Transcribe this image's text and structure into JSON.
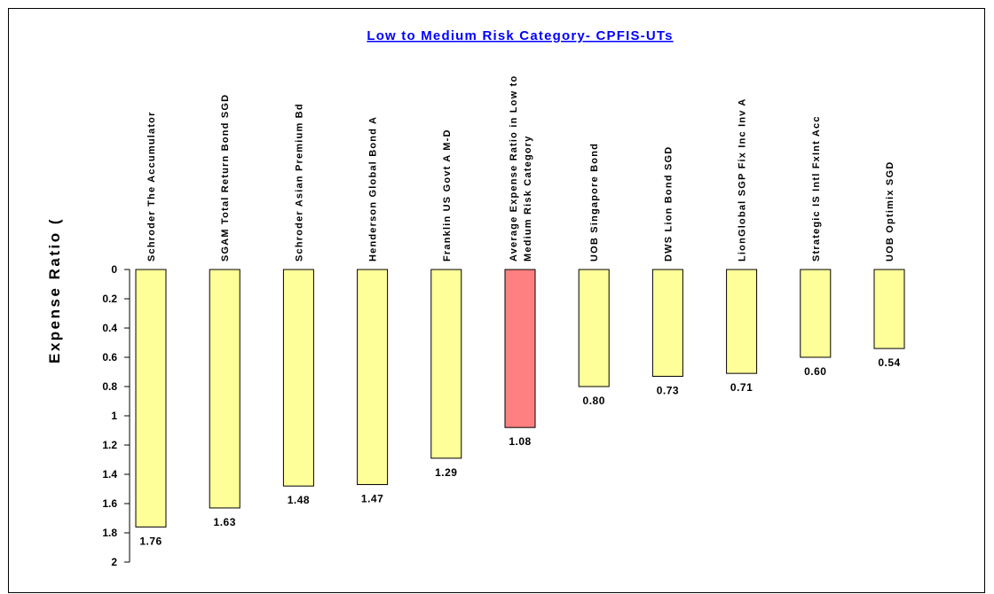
{
  "chart_data": {
    "type": "bar",
    "title": "Low to Medium Risk Category- CPFIS-UTs",
    "ylabel": "Expense Ratio (",
    "xlabel": "",
    "ylim": [
      0,
      2
    ],
    "y_inverted": true,
    "y_ticks": [
      "0",
      "0.2",
      "0.4",
      "0.6",
      "0.8",
      "1",
      "1.2",
      "1.4",
      "1.6",
      "1.8",
      "2"
    ],
    "y_tick_values": [
      0,
      0.2,
      0.4,
      0.6,
      0.8,
      1,
      1.2,
      1.4,
      1.6,
      1.8,
      2
    ],
    "categories": [
      [
        "Schroder The Accumulator"
      ],
      [
        "SGAM Total Return Bond SGD"
      ],
      [
        "Schroder Asian Premium Bd"
      ],
      [
        "Henderson Global Bond A"
      ],
      [
        "Franklin US Govt A M-D"
      ],
      [
        "Average Expense Ratio in Low to",
        "Medium Risk Category"
      ],
      [
        "UOB Singapore Bond"
      ],
      [
        "DWS Lion Bond SGD"
      ],
      [
        "LionGlobal SGP Fix Inc Inv A"
      ],
      [
        "Strategic IS Intl FxInt Acc"
      ],
      [
        "UOB Optimix SGD"
      ]
    ],
    "values": [
      1.76,
      1.63,
      1.48,
      1.47,
      1.29,
      1.08,
      0.8,
      0.73,
      0.71,
      0.6,
      0.54
    ],
    "data_labels": [
      "1.76",
      "1.63",
      "1.48",
      "1.47",
      "1.29",
      "1.08",
      "0.80",
      "0.73",
      "0.71",
      "0.60",
      "0.54"
    ],
    "colors": {
      "bar": "#ffff99",
      "highlight_bar": "#ff8080",
      "title": "#0000ff",
      "border": "#000000"
    },
    "highlight_index": 5,
    "grid": false,
    "legend": "none"
  }
}
